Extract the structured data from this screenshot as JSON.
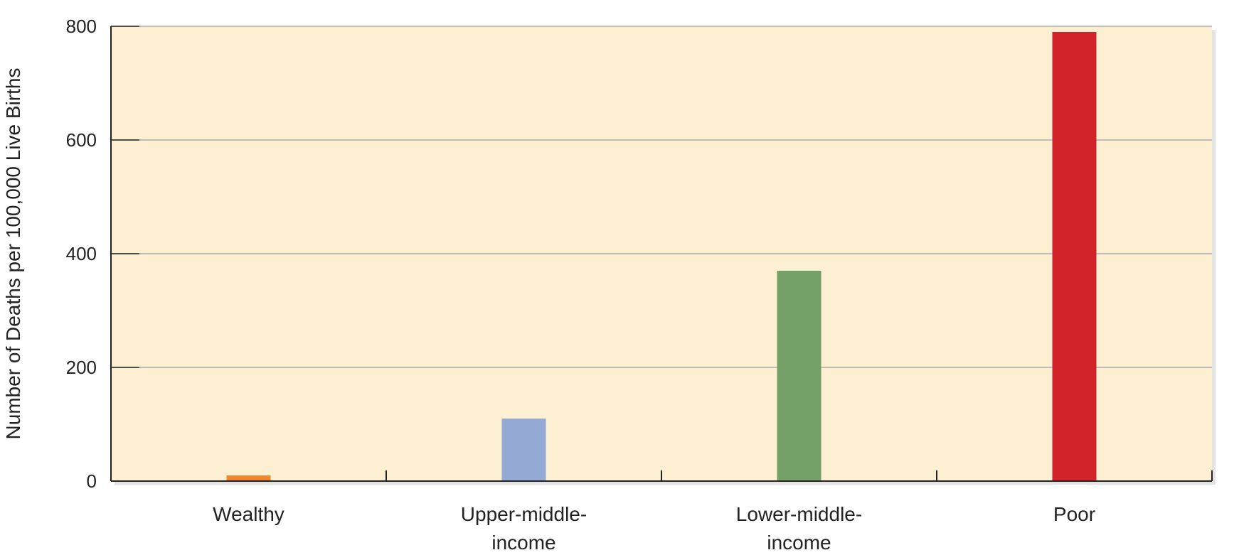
{
  "chart_data": {
    "type": "bar",
    "categories": [
      [
        "Wealthy"
      ],
      [
        "Upper-middle-",
        "income"
      ],
      [
        "Lower-middle-",
        "income"
      ],
      [
        "Poor"
      ]
    ],
    "values": [
      10,
      110,
      370,
      790
    ],
    "colors": [
      "#f0872c",
      "#94a9d4",
      "#72a066",
      "#d2232b"
    ],
    "ylabel": "Number of Deaths per 100,000 Live Births",
    "ylim": [
      0,
      800
    ],
    "yticks": [
      0,
      200,
      400,
      600,
      800
    ],
    "grid": true,
    "plot_background": "#fdf0d2",
    "gridline_color": "#aaaaaa",
    "axis_color": "#222222"
  }
}
